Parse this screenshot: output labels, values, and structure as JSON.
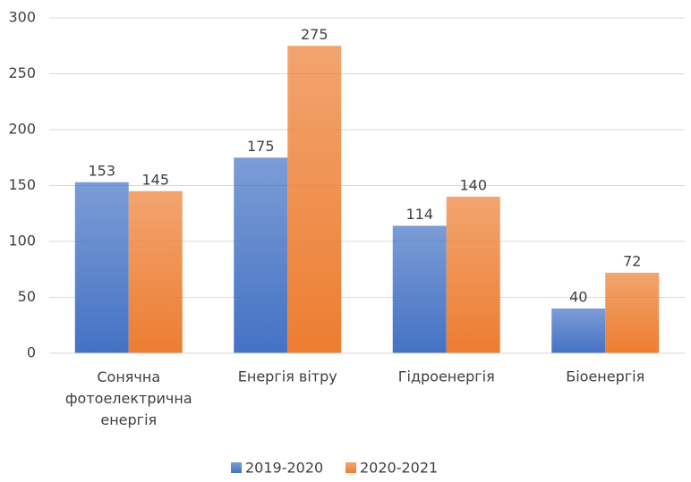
{
  "chart_data": {
    "type": "bar",
    "categories": [
      "Сонячна фотоелектрична енергія",
      "Енергія вітру",
      "Гідроенергія",
      "Біоенергія"
    ],
    "series": [
      {
        "name": "2019-2020",
        "color": "#4472c4",
        "values": [
          153,
          175,
          114,
          40
        ]
      },
      {
        "name": "2020-2021",
        "color": "#ed7d31",
        "values": [
          145,
          275,
          140,
          72
        ]
      }
    ],
    "ylim": [
      0,
      300
    ],
    "yticks": [
      0,
      50,
      100,
      150,
      200,
      250,
      300
    ],
    "grid": true,
    "legend": "bottom"
  }
}
